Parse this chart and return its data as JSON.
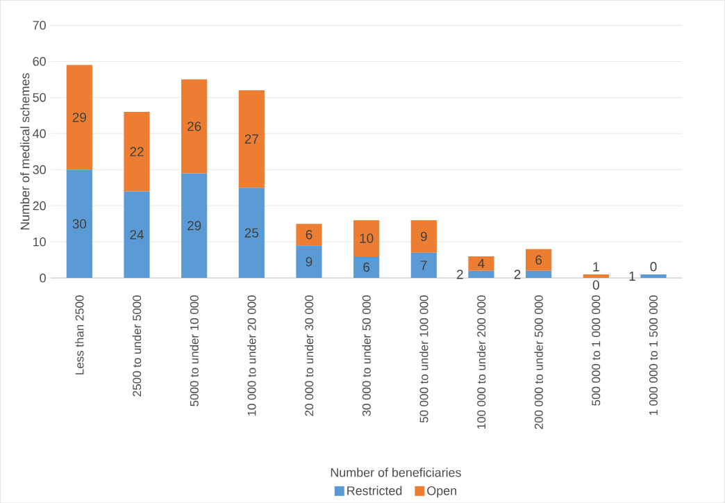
{
  "chart_data": {
    "type": "bar",
    "stacked": true,
    "xlabel": "Number of beneficiaries",
    "ylabel": "Number of medical schemes",
    "categories": [
      "Less than 2500",
      "2500 to under 5000",
      "5000 to under 10 000",
      "10 000 to under 20 000",
      "20 000 to under 30 000",
      "30 000 to under 50 000",
      "50 000 to under 100 000",
      "100 000 to under 200 000",
      "200 000 to under 500 000",
      "500 000 to 1 000 000",
      "1 000 000 to 1 500 000"
    ],
    "series": [
      {
        "name": "Restricted",
        "color": "#5b9bd5",
        "values": [
          30,
          24,
          29,
          25,
          9,
          6,
          7,
          2,
          2,
          0,
          1
        ]
      },
      {
        "name": "Open",
        "color": "#ed7d31",
        "values": [
          29,
          22,
          26,
          27,
          6,
          10,
          9,
          4,
          6,
          1,
          0
        ]
      }
    ],
    "ylim": [
      0,
      70
    ],
    "yticks": [
      0,
      10,
      20,
      30,
      40,
      50,
      60,
      70
    ],
    "grid": "y",
    "legend": "bottom",
    "data_labels": true
  }
}
